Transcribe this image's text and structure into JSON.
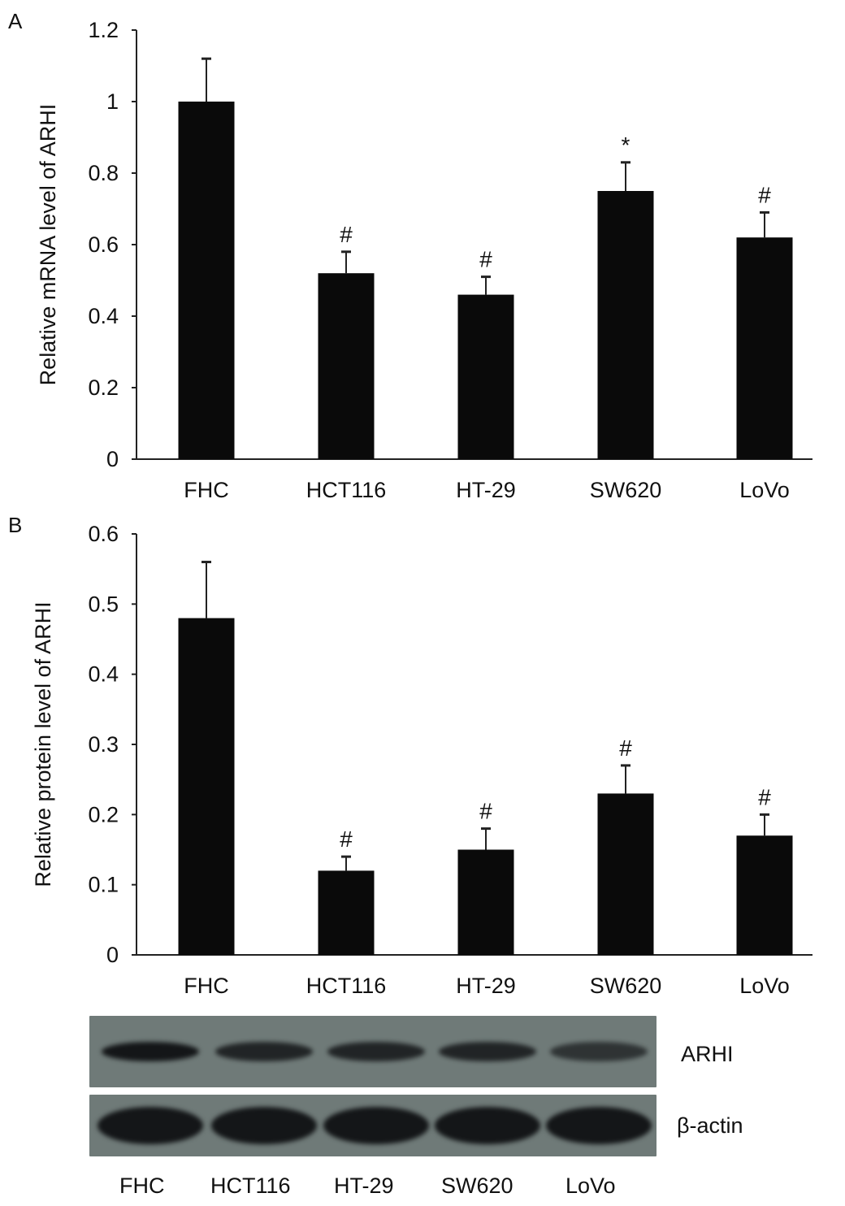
{
  "chart_data": [
    {
      "panel": "A",
      "type": "bar",
      "ylabel": "Relative mRNA level of ARHI",
      "ylim": [
        0,
        1.2
      ],
      "yticks": [
        0,
        0.2,
        0.4,
        0.6,
        0.8,
        1,
        1.2
      ],
      "categories": [
        "FHC",
        "HCT116",
        "HT-29",
        "SW620",
        "LoVo"
      ],
      "values": [
        1.0,
        0.52,
        0.46,
        0.75,
        0.62
      ],
      "errors": [
        0.12,
        0.06,
        0.05,
        0.08,
        0.07
      ],
      "annotations": [
        "",
        "#",
        "#",
        "*",
        "#"
      ]
    },
    {
      "panel": "B",
      "type": "bar",
      "ylabel": "Relative protein level of ARHI",
      "ylim": [
        0,
        0.6
      ],
      "yticks": [
        0,
        0.1,
        0.2,
        0.3,
        0.4,
        0.5,
        0.6
      ],
      "categories": [
        "FHC",
        "HCT116",
        "HT-29",
        "SW620",
        "LoVo"
      ],
      "values": [
        0.48,
        0.12,
        0.15,
        0.23,
        0.17
      ],
      "errors": [
        0.08,
        0.02,
        0.03,
        0.04,
        0.03
      ],
      "annotations": [
        "",
        "#",
        "#",
        "#",
        "#"
      ]
    }
  ],
  "blot": {
    "rows": [
      "ARHI",
      "β-actin"
    ],
    "lanes": [
      "FHC",
      "HCT116",
      "HT-29",
      "SW620",
      "LoVo"
    ],
    "arhi_intensity": [
      1,
      0.85,
      0.85,
      0.85,
      0.7
    ],
    "actin_intensity": [
      1,
      1,
      1,
      1,
      1
    ]
  }
}
